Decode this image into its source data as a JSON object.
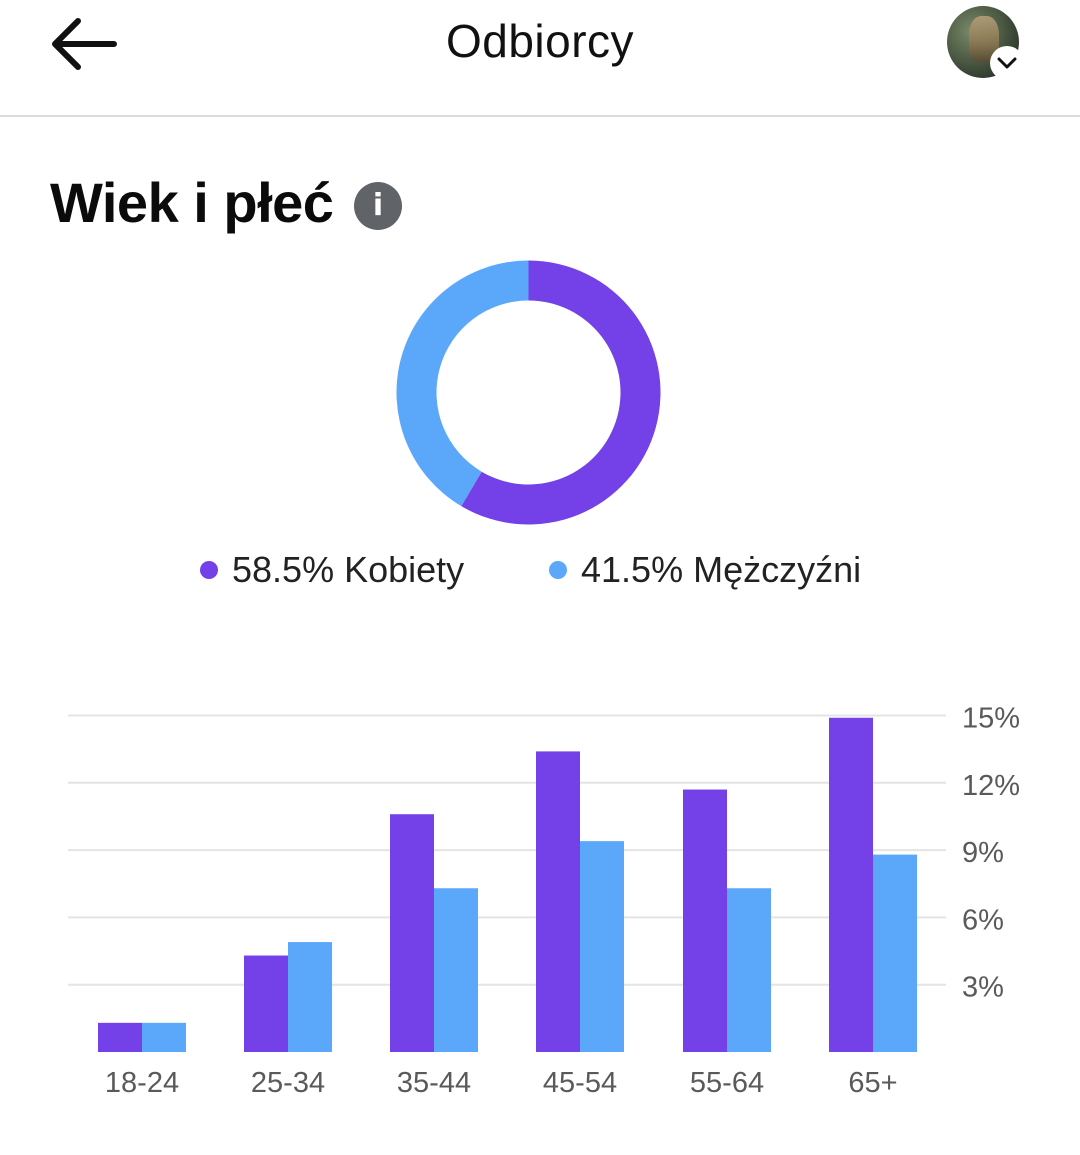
{
  "header": {
    "title": "Odbiorcy",
    "back_icon": "arrow-left-icon",
    "avatar_badge_icon": "chevron-down-icon"
  },
  "section": {
    "title": "Wiek i płeć",
    "info_icon": "info-icon",
    "info_glyph": "i"
  },
  "colors": {
    "women": "#7440e8",
    "men": "#5ba8fb",
    "grid": "#e4e4e4",
    "axis_text": "#5a5a5a"
  },
  "gender": {
    "women_label": "58.5% Kobiety",
    "men_label": "41.5% Mężczyźni",
    "women_pct": 58.5,
    "men_pct": 41.5
  },
  "chart_data": [
    {
      "type": "pie",
      "categories": [
        "Kobiety",
        "Mężczyźni"
      ],
      "values": [
        58.5,
        41.5
      ]
    },
    {
      "type": "bar",
      "categories": [
        "18-24",
        "25-34",
        "35-44",
        "45-54",
        "55-64",
        "65+"
      ],
      "series": [
        {
          "name": "Kobiety",
          "values": [
            1.3,
            4.3,
            10.6,
            13.4,
            11.7,
            14.9
          ]
        },
        {
          "name": "Mężczyźni",
          "values": [
            1.3,
            4.9,
            7.3,
            9.4,
            7.3,
            8.8
          ]
        }
      ],
      "yticks": [
        "3%",
        "6%",
        "9%",
        "12%",
        "15%"
      ],
      "ytick_values": [
        3,
        6,
        9,
        12,
        15
      ],
      "ylim": [
        0,
        15
      ],
      "grid": true,
      "y_axis_side": "right"
    }
  ]
}
